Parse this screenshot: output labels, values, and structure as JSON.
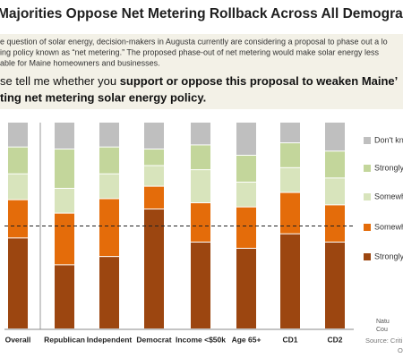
{
  "chart_data": {
    "type": "stacked_bar",
    "title": "Majorities Oppose Net Metering Rollback Across All Demograph",
    "intro": [
      "e question of solar energy, decision-makers in Augusta currently are considering a proposal to phase out a lo",
      "ing policy known as “net metering.” The proposed phase-out of net metering would make solar energy less",
      "able for Maine homeowners and businesses."
    ],
    "question": [
      "se tell me whether you ",
      "support or oppose this proposal to weaken Maine’",
      "ting net metering solar energy policy."
    ],
    "categories": [
      "Overall",
      "Republican",
      "Independent",
      "Democrat",
      "Income <$50k",
      "Age 65+",
      "CD1",
      "CD2"
    ],
    "series": [
      {
        "name": "Don't kno",
        "color": "#bfbfbf",
        "values": [
          12,
          13,
          12,
          13,
          11,
          16,
          10,
          14
        ]
      },
      {
        "name": "Strongly s",
        "color": "#c3d69b",
        "values": [
          13,
          19,
          13,
          8,
          12,
          13,
          12,
          13
        ]
      },
      {
        "name": "Somewha",
        "color": "#d8e4bc",
        "values": [
          12.5,
          12,
          12,
          10,
          16,
          12,
          12,
          13
        ]
      },
      {
        "name": "Somewha",
        "color": "#e46c0a",
        "values": [
          18.5,
          25,
          28,
          11,
          19,
          20,
          20,
          18
        ]
      },
      {
        "name": "Strongly o",
        "color": "#9c4610",
        "values": [
          44,
          31,
          35,
          58,
          42,
          39,
          46,
          42
        ]
      }
    ],
    "ylim": [
      0,
      100
    ],
    "reference_line": 50,
    "source": [
      "Source: Criti",
      "O"
    ],
    "logo": [
      "Natu",
      "Cou"
    ]
  }
}
